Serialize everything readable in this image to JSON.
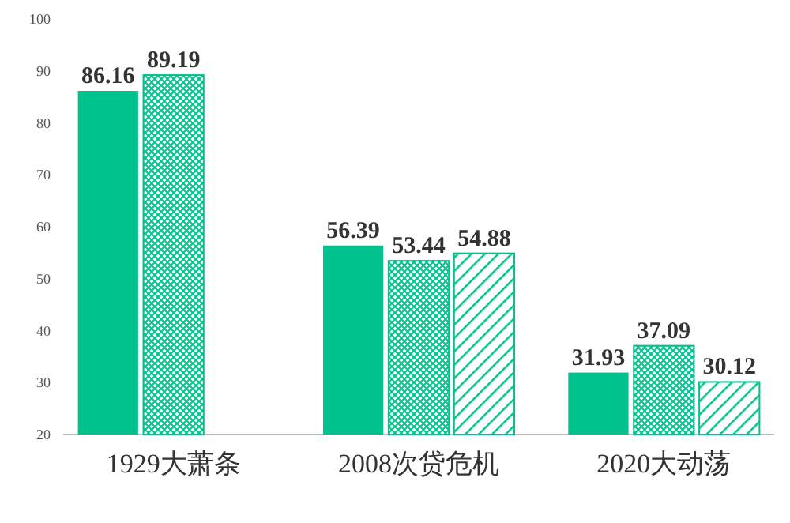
{
  "chart_data": {
    "type": "bar",
    "categories": [
      "1929大萧条",
      "2008次贷危机",
      "2020大动荡"
    ],
    "series": [
      {
        "color": "#00c28c",
        "values": [
          86.16,
          56.39,
          31.93
        ]
      },
      {
        "color": "#00c28c",
        "values": [
          89.19,
          53.44,
          37.09
        ]
      },
      {
        "color": "#00c28c",
        "values": [
          null,
          54.88,
          30.12
        ]
      }
    ],
    "ylim": [
      20,
      100
    ],
    "yticks": [
      20,
      30,
      40,
      50,
      60,
      70,
      80,
      90,
      100
    ],
    "data_labels": true,
    "grid": false
  }
}
